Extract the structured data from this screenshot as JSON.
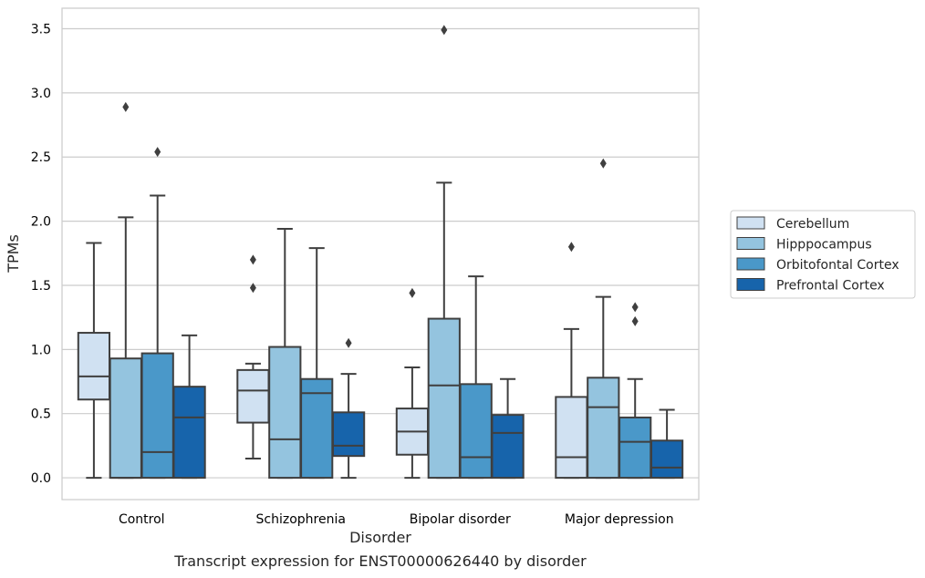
{
  "caption": "Transcript expression for ENST00000626440 by disorder",
  "chart_data": {
    "type": "box",
    "title": "",
    "xlabel": "Disorder",
    "ylabel": "TPMs",
    "ylim": [
      -0.17,
      3.66
    ],
    "yticks": [
      0.0,
      0.5,
      1.0,
      1.5,
      2.0,
      2.5,
      3.0,
      3.5
    ],
    "ytick_labels": [
      "0.0",
      "0.5",
      "1.0",
      "1.5",
      "2.0",
      "2.5",
      "3.0",
      "3.5"
    ],
    "grid": "horizontal",
    "legend_position": "right",
    "categories": [
      "Control",
      "Schizophrenia",
      "Bipolar disorder",
      "Major depression"
    ],
    "series": [
      {
        "name": "Cerebellum",
        "color": "#d0e1f2",
        "boxes": [
          {
            "whisker_low": 0.0,
            "q1": 0.61,
            "median": 0.79,
            "q3": 1.13,
            "whisker_high": 1.83,
            "outliers": []
          },
          {
            "whisker_low": 0.15,
            "q1": 0.43,
            "median": 0.68,
            "q3": 0.84,
            "whisker_high": 0.89,
            "outliers": [
              1.48,
              1.7
            ]
          },
          {
            "whisker_low": 0.0,
            "q1": 0.18,
            "median": 0.36,
            "q3": 0.54,
            "whisker_high": 0.86,
            "outliers": [
              1.44
            ]
          },
          {
            "whisker_low": 0.0,
            "q1": 0.0,
            "median": 0.16,
            "q3": 0.63,
            "whisker_high": 1.16,
            "outliers": [
              1.8
            ]
          }
        ]
      },
      {
        "name": "Hipppocampus",
        "color": "#94c4df",
        "boxes": [
          {
            "whisker_low": 0.0,
            "q1": 0.0,
            "median": 0.0,
            "q3": 0.93,
            "whisker_high": 2.03,
            "outliers": [
              2.89
            ]
          },
          {
            "whisker_low": 0.0,
            "q1": 0.0,
            "median": 0.3,
            "q3": 1.02,
            "whisker_high": 1.94,
            "outliers": []
          },
          {
            "whisker_low": 0.0,
            "q1": 0.0,
            "median": 0.72,
            "q3": 1.24,
            "whisker_high": 2.3,
            "outliers": [
              3.49
            ]
          },
          {
            "whisker_low": 0.0,
            "q1": 0.0,
            "median": 0.55,
            "q3": 0.78,
            "whisker_high": 1.41,
            "outliers": [
              2.45
            ]
          }
        ]
      },
      {
        "name": "Orbitofontal Cortex",
        "color": "#4a98c9",
        "boxes": [
          {
            "whisker_low": 0.0,
            "q1": 0.0,
            "median": 0.2,
            "q3": 0.97,
            "whisker_high": 2.2,
            "outliers": [
              2.54
            ]
          },
          {
            "whisker_low": 0.0,
            "q1": 0.0,
            "median": 0.66,
            "q3": 0.77,
            "whisker_high": 1.79,
            "outliers": []
          },
          {
            "whisker_low": 0.0,
            "q1": 0.0,
            "median": 0.16,
            "q3": 0.73,
            "whisker_high": 1.57,
            "outliers": []
          },
          {
            "whisker_low": 0.0,
            "q1": 0.0,
            "median": 0.28,
            "q3": 0.47,
            "whisker_high": 0.77,
            "outliers": [
              1.22,
              1.33
            ]
          }
        ]
      },
      {
        "name": "Prefrontal Cortex",
        "color": "#1764ab",
        "boxes": [
          {
            "whisker_low": 0.0,
            "q1": 0.0,
            "median": 0.47,
            "q3": 0.71,
            "whisker_high": 1.11,
            "outliers": []
          },
          {
            "whisker_low": 0.0,
            "q1": 0.17,
            "median": 0.25,
            "q3": 0.51,
            "whisker_high": 0.81,
            "outliers": [
              1.05
            ]
          },
          {
            "whisker_low": 0.0,
            "q1": 0.0,
            "median": 0.35,
            "q3": 0.49,
            "whisker_high": 0.77,
            "outliers": []
          },
          {
            "whisker_low": 0.0,
            "q1": 0.0,
            "median": 0.08,
            "q3": 0.29,
            "whisker_high": 0.53,
            "outliers": []
          }
        ]
      }
    ]
  }
}
